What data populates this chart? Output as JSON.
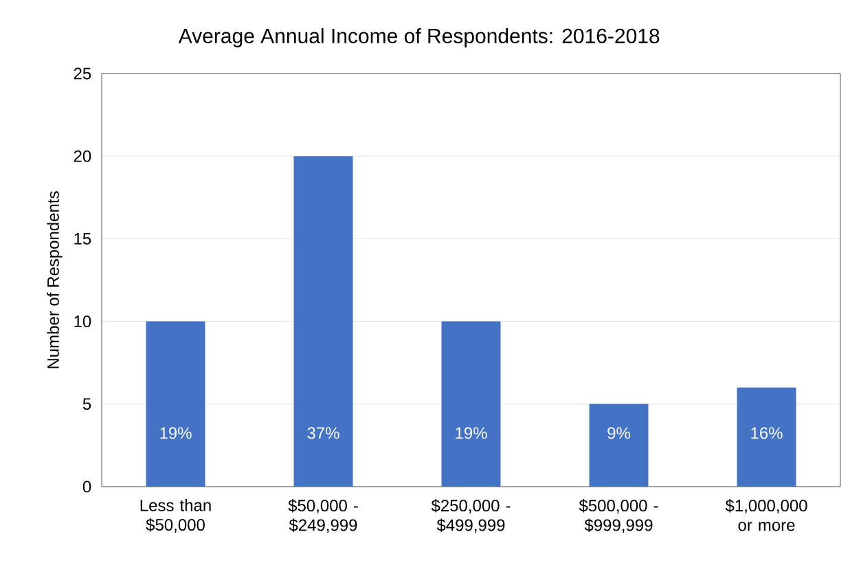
{
  "chart_data": {
    "type": "bar",
    "title": "Average Annual Income of Respondents: 2016-2018",
    "ylabel": "Number of Respondents",
    "categories": [
      "Less than $50,000",
      "$50,000 - $249,999",
      "$250,000 - $499,999",
      "$500,000 - $999,999",
      "$1,000,000 or more"
    ],
    "values": [
      10,
      20,
      10,
      5,
      6
    ],
    "annotations": [
      "19%",
      "37%",
      "19%",
      "9%",
      "16%"
    ],
    "color": "#4472c4",
    "ylim": [
      0,
      25
    ],
    "yticks": [
      0,
      5,
      10,
      15,
      20,
      25
    ],
    "grid": "y"
  }
}
